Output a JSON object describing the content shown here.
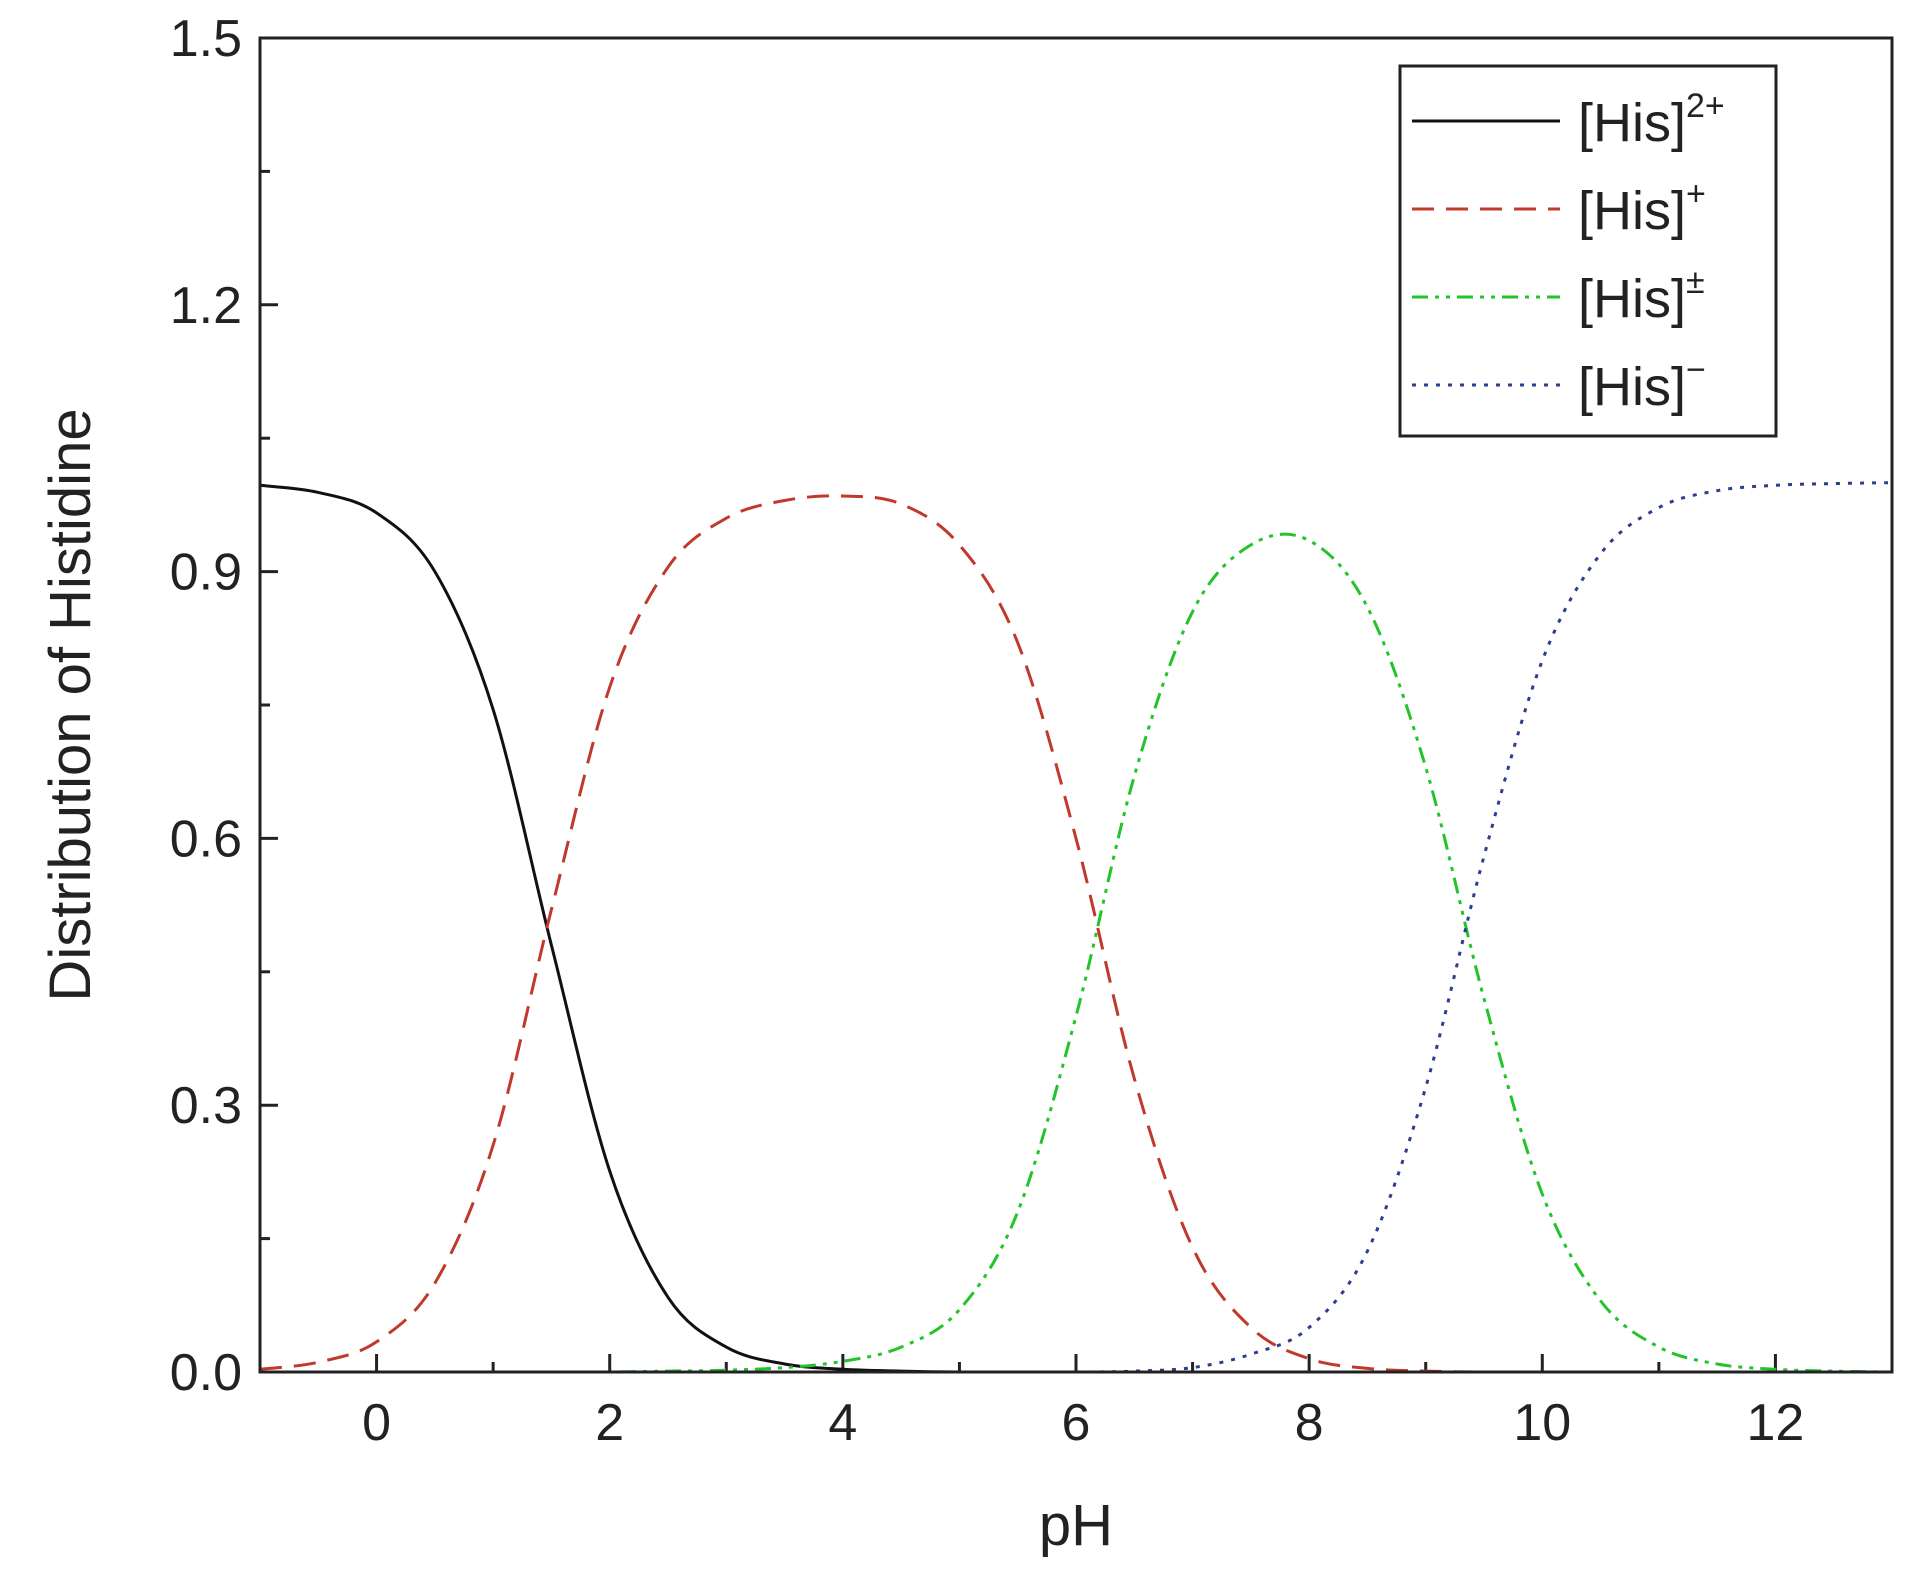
{
  "chart_data": {
    "type": "line",
    "title": "",
    "xlabel": "pH",
    "ylabel": "Distribution of Histidine",
    "xlim": [
      -1,
      13
    ],
    "ylim": [
      0,
      1.5
    ],
    "x_ticks": [
      0,
      2,
      4,
      6,
      8,
      10,
      12
    ],
    "x_tick_labels": [
      "0",
      "2",
      "4",
      "6",
      "8",
      "10",
      "12"
    ],
    "x_minor_ticks": [
      -1,
      1,
      3,
      5,
      7,
      9,
      11,
      13
    ],
    "y_ticks": [
      0,
      0.3,
      0.6,
      0.9,
      1.2,
      1.5
    ],
    "y_tick_labels": [
      "0.0",
      "0.3",
      "0.6",
      "0.9",
      "1.2",
      "1.5"
    ],
    "grid": false,
    "legend_position": "top-right",
    "x": [
      -1,
      -0.5,
      0,
      0.5,
      1,
      1.5,
      2,
      2.5,
      3,
      3.5,
      4,
      4.5,
      5,
      5.5,
      6,
      6.5,
      7,
      7.5,
      8,
      8.5,
      9,
      9.5,
      10,
      10.5,
      11,
      11.5,
      12,
      12.5,
      13
    ],
    "series": [
      {
        "name_base": "[His]",
        "name_sup": "2+",
        "color": "#111111",
        "style": "solid",
        "values": [
          0.997,
          0.989,
          0.966,
          0.9,
          0.745,
          0.48,
          0.226,
          0.084,
          0.028,
          0.009,
          0.003,
          0.001,
          0,
          0,
          0,
          0,
          0,
          0,
          0,
          0,
          0,
          0,
          0,
          0,
          0,
          0,
          0,
          0,
          0
        ]
      },
      {
        "name_base": "[His]",
        "name_sup": "+",
        "color": "#c0392b",
        "style": "dashed",
        "values": [
          0.003,
          0.011,
          0.034,
          0.1,
          0.255,
          0.52,
          0.77,
          0.905,
          0.96,
          0.98,
          0.985,
          0.976,
          0.93,
          0.82,
          0.6,
          0.33,
          0.14,
          0.05,
          0.015,
          0.004,
          0.001,
          0,
          0,
          0,
          0,
          0,
          0,
          0,
          0
        ]
      },
      {
        "name_base": "[His]",
        "name_sup": "±",
        "color": "#22c42a",
        "style": "dashdotdot",
        "values": [
          0,
          0,
          0,
          0,
          0,
          0,
          0,
          0.001,
          0.002,
          0.005,
          0.012,
          0.028,
          0.07,
          0.18,
          0.4,
          0.67,
          0.855,
          0.93,
          0.935,
          0.86,
          0.68,
          0.42,
          0.2,
          0.08,
          0.028,
          0.009,
          0.003,
          0.001,
          0
        ]
      },
      {
        "name_base": "[His]",
        "name_sup": "−",
        "color": "#2c3e8f",
        "style": "dotted",
        "values": [
          0,
          0,
          0,
          0,
          0,
          0,
          0,
          0,
          0,
          0,
          0,
          0,
          0,
          0,
          0,
          0.001,
          0.005,
          0.02,
          0.05,
          0.136,
          0.32,
          0.58,
          0.8,
          0.92,
          0.972,
          0.991,
          0.997,
          0.999,
          1.0
        ]
      }
    ]
  }
}
